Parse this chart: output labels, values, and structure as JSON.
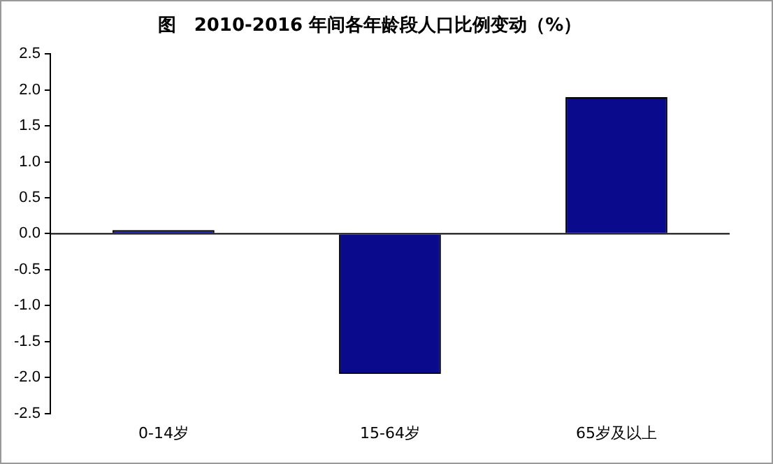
{
  "chart_data": {
    "type": "bar",
    "title": "图　2010-2016 年间各年龄段人口比例变动（%）",
    "categories": [
      "0-14岁",
      "15-64岁",
      "65岁及以上"
    ],
    "values": [
      0.05,
      -1.95,
      1.9
    ],
    "color": "#0a0a8c",
    "ylim": [
      -2.5,
      2.5
    ],
    "yticks": [
      {
        "value": -2.5,
        "label": "-2.5"
      },
      {
        "value": -2,
        "label": "-2.0"
      },
      {
        "value": -1.5,
        "label": "-1.5"
      },
      {
        "value": -1,
        "label": "-1.0"
      },
      {
        "value": -0.5,
        "label": "-0.5"
      },
      {
        "value": 0,
        "label": "0.0"
      },
      {
        "value": 0.5,
        "label": "0.5"
      },
      {
        "value": 1,
        "label": "1.0"
      },
      {
        "value": 1.5,
        "label": "1.5"
      },
      {
        "value": 2,
        "label": "2.0"
      },
      {
        "value": 2.5,
        "label": "2.5"
      }
    ],
    "legend": false
  }
}
